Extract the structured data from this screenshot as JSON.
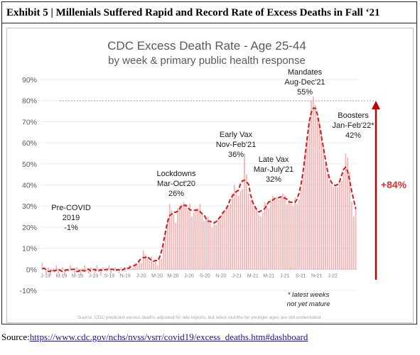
{
  "exhibit": {
    "title": "Exhibit 5 | Millenials Suffered Rapid and Record Rate of Excess Deaths in Fall ‘21"
  },
  "source": {
    "label": "Source:",
    "url": "https://www.cdc.gov/nchs/nvss/vsrr/covid19/excess_deaths.htm#dashboard"
  },
  "chart_data": {
    "type": "bar",
    "title": "CDC Excess Death Rate - Age 25-44",
    "subtitle": "by week & primary public health response",
    "ylim": [
      -10,
      90
    ],
    "y_ticks": [
      "90%",
      "80%",
      "70%",
      "60%",
      "50%",
      "40%",
      "30%",
      "20%",
      "10%",
      "0%",
      "-10%"
    ],
    "x_tick_labels": [
      "J-19",
      "M-19",
      "M-19",
      "J-19",
      "S-19",
      "N-19",
      "J-20",
      "M-20",
      "M-20",
      "J-20",
      "S-20",
      "N-20",
      "J-21",
      "M-21",
      "M-21",
      "J-21",
      "S-21",
      "N-21",
      "J-22"
    ],
    "footnote": "Source: CDC predicted excess deaths adjusted for late reports, but latest months for younger ages are still understated",
    "latest_note": [
      "* latest weeks",
      "not yet mature"
    ],
    "change_label": "+84%",
    "annotations": [
      {
        "lines": [
          "Pre-COVID",
          "2019",
          "-1%"
        ]
      },
      {
        "lines": [
          "Lockdowns",
          "Mar-Oct'20",
          "26%"
        ]
      },
      {
        "lines": [
          "Early Vax",
          "Nov-Feb'21",
          "36%"
        ]
      },
      {
        "lines": [
          "Late Vax",
          "Mar-July'21",
          "32%"
        ]
      },
      {
        "lines": [
          "Mandates",
          "Aug-Dec'21",
          "55%"
        ]
      },
      {
        "lines": [
          "Boosters",
          "Jan-Feb'22*",
          "42%"
        ]
      }
    ],
    "bar_color": "#f4b3b3",
    "trend_color": "#d21b1b",
    "arrow_color": "#c00000",
    "weekly_values": [
      3,
      0,
      -2,
      1,
      -3,
      -1,
      0,
      2,
      -2,
      -1,
      1,
      -3,
      0,
      -1,
      2,
      0,
      -2,
      1,
      -1,
      -3,
      0,
      2,
      -1,
      -2,
      1,
      0,
      -2,
      2,
      -1,
      -3,
      1,
      0,
      -1,
      2,
      -2,
      0,
      1,
      -1,
      -2,
      1,
      0,
      -1,
      1,
      2,
      0,
      1,
      3,
      2,
      4,
      3,
      9,
      7,
      5,
      4,
      6,
      3,
      4,
      2,
      6,
      5,
      12,
      18,
      24,
      31,
      28,
      26,
      22,
      29,
      30,
      31,
      32,
      30,
      28,
      31,
      25,
      27,
      29,
      28,
      31,
      26,
      23,
      24,
      25,
      22,
      20,
      23,
      21,
      24,
      25,
      26,
      28,
      29,
      30,
      31,
      36,
      40,
      37,
      35,
      37,
      38,
      55,
      45,
      36,
      33,
      33,
      30,
      28,
      26,
      25,
      27,
      32,
      31,
      29,
      33,
      35,
      33,
      34,
      33,
      34,
      36,
      35,
      31,
      33,
      31,
      30,
      34,
      31,
      33,
      38,
      45,
      55,
      62,
      70,
      80,
      82,
      78,
      72,
      70,
      66,
      58,
      50,
      45,
      42,
      40,
      39,
      40,
      39,
      41,
      42,
      46,
      55,
      53,
      46,
      32,
      25,
      29
    ]
  }
}
